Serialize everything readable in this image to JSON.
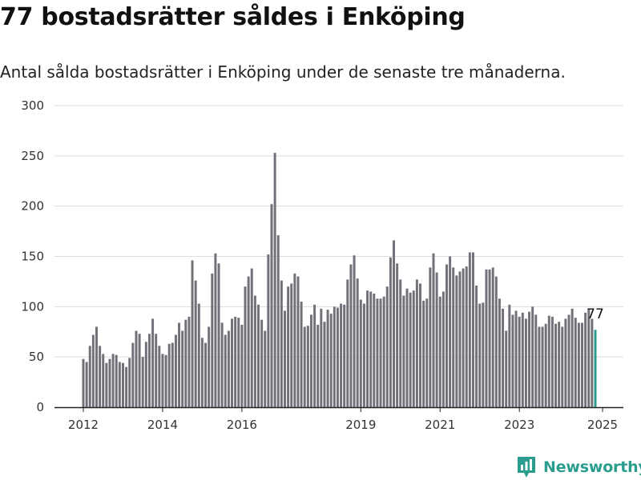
{
  "title": "77 bostadsrätter såldes i Enköping",
  "subtitle": "Antal sålda bostadsrätter i Enköping under de senaste tre månaderna.",
  "brand": {
    "name": "Newsworthy",
    "icon": "bar-chart-pin-icon"
  },
  "colors": {
    "bar": "#727179",
    "highlight": "#2a9d8f",
    "grid": "#dddddd",
    "axis": "#222222"
  },
  "chart_data": {
    "type": "bar",
    "title": "",
    "xlabel": "",
    "ylabel": "",
    "grid": true,
    "ylim": [
      0,
      300
    ],
    "yticks": [
      0,
      50,
      100,
      150,
      200,
      250,
      300
    ],
    "xticks": [
      "2012",
      "2014",
      "2016",
      "2019",
      "2021",
      "2023",
      "2025"
    ],
    "x_start": "2012-01",
    "x_end": "2024-12",
    "highlight_last": true,
    "last_label": "77",
    "categories": [
      "2012-01",
      "2012-02",
      "2012-03",
      "2012-04",
      "2012-05",
      "2012-06",
      "2012-07",
      "2012-08",
      "2012-09",
      "2012-10",
      "2012-11",
      "2012-12",
      "2013-01",
      "2013-02",
      "2013-03",
      "2013-04",
      "2013-05",
      "2013-06",
      "2013-07",
      "2013-08",
      "2013-09",
      "2013-10",
      "2013-11",
      "2013-12",
      "2014-01",
      "2014-02",
      "2014-03",
      "2014-04",
      "2014-05",
      "2014-06",
      "2014-07",
      "2014-08",
      "2014-09",
      "2014-10",
      "2014-11",
      "2014-12",
      "2015-01",
      "2015-02",
      "2015-03",
      "2015-04",
      "2015-05",
      "2015-06",
      "2015-07",
      "2015-08",
      "2015-09",
      "2015-10",
      "2015-11",
      "2015-12",
      "2016-01",
      "2016-02",
      "2016-03",
      "2016-04",
      "2016-05",
      "2016-06",
      "2016-07",
      "2016-08",
      "2016-09",
      "2016-10",
      "2016-11",
      "2016-12",
      "2017-01",
      "2017-02",
      "2017-03",
      "2017-04",
      "2017-05",
      "2017-06",
      "2017-07",
      "2017-08",
      "2017-09",
      "2017-10",
      "2017-11",
      "2017-12",
      "2018-01",
      "2018-02",
      "2018-03",
      "2018-04",
      "2018-05",
      "2018-06",
      "2018-07",
      "2018-08",
      "2018-09",
      "2018-10",
      "2018-11",
      "2018-12",
      "2019-01",
      "2019-02",
      "2019-03",
      "2019-04",
      "2019-05",
      "2019-06",
      "2019-07",
      "2019-08",
      "2019-09",
      "2019-10",
      "2019-11",
      "2019-12",
      "2020-01",
      "2020-02",
      "2020-03",
      "2020-04",
      "2020-05",
      "2020-06",
      "2020-07",
      "2020-08",
      "2020-09",
      "2020-10",
      "2020-11",
      "2020-12",
      "2021-01",
      "2021-02",
      "2021-03",
      "2021-04",
      "2021-05",
      "2021-06",
      "2021-07",
      "2021-08",
      "2021-09",
      "2021-10",
      "2021-11",
      "2021-12",
      "2022-01",
      "2022-02",
      "2022-03",
      "2022-04",
      "2022-05",
      "2022-06",
      "2022-07",
      "2022-08",
      "2022-09",
      "2022-10",
      "2022-11",
      "2022-12",
      "2023-01",
      "2023-02",
      "2023-03",
      "2023-04",
      "2023-05",
      "2023-06",
      "2023-07",
      "2023-08",
      "2023-09",
      "2023-10",
      "2023-11",
      "2023-12",
      "2024-01",
      "2024-02",
      "2024-03",
      "2024-04",
      "2024-05",
      "2024-06",
      "2024-07",
      "2024-08",
      "2024-09",
      "2024-10",
      "2024-11",
      "2024-12"
    ],
    "values": [
      48,
      45,
      61,
      72,
      80,
      61,
      53,
      44,
      48,
      53,
      52,
      45,
      44,
      40,
      49,
      64,
      76,
      73,
      50,
      65,
      73,
      88,
      73,
      61,
      53,
      52,
      63,
      64,
      72,
      84,
      76,
      87,
      90,
      146,
      126,
      103,
      69,
      64,
      80,
      133,
      153,
      143,
      84,
      72,
      76,
      88,
      90,
      89,
      82,
      120,
      130,
      138,
      111,
      102,
      87,
      76,
      152,
      202,
      253,
      171,
      126,
      96,
      120,
      123,
      133,
      130,
      105,
      80,
      81,
      92,
      102,
      82,
      98,
      85,
      97,
      93,
      100,
      99,
      103,
      102,
      127,
      142,
      151,
      128,
      107,
      103,
      116,
      115,
      113,
      108,
      108,
      110,
      120,
      149,
      166,
      143,
      127,
      111,
      118,
      114,
      116,
      127,
      123,
      106,
      108,
      139,
      153,
      134,
      110,
      115,
      142,
      150,
      139,
      131,
      135,
      138,
      140,
      154,
      154,
      121,
      103,
      104,
      137,
      137,
      139,
      130,
      108,
      98,
      76,
      102,
      92,
      96,
      90,
      94,
      88,
      95,
      100,
      92,
      80,
      80,
      83,
      91,
      90,
      83,
      85,
      80,
      88,
      92,
      98,
      89,
      84,
      84,
      94,
      98,
      88,
      77
    ]
  }
}
